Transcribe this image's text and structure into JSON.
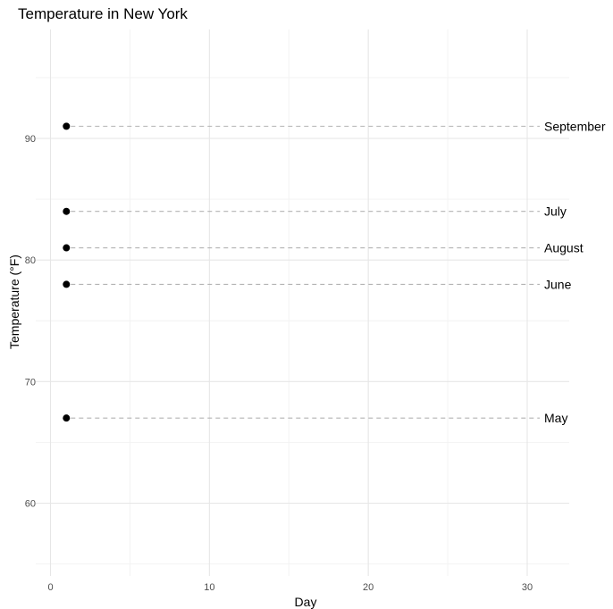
{
  "chart_data": {
    "type": "scatter",
    "title": "Temperature in New York",
    "xlabel": "Day",
    "ylabel": "Temperature (°F)",
    "xlim": [
      0,
      32.5
    ],
    "ylim": [
      55,
      97
    ],
    "x_ticks": [
      0,
      10,
      20,
      30
    ],
    "x_tick_labels": [
      "0",
      "10",
      "20",
      "30"
    ],
    "y_ticks": [
      60,
      70,
      80,
      90
    ],
    "y_tick_labels": [
      "60",
      "70",
      "80",
      "90"
    ],
    "grid": true,
    "legend": "none",
    "series": [
      {
        "points": [
          {
            "x": 1,
            "y": 91,
            "label": "September"
          },
          {
            "x": 1,
            "y": 84,
            "label": "July"
          },
          {
            "x": 1,
            "y": 81,
            "label": "August"
          },
          {
            "x": 1,
            "y": 78,
            "label": "June"
          },
          {
            "x": 1,
            "y": 67,
            "label": "May"
          }
        ],
        "color": "#000000"
      }
    ],
    "guide_color": "#b3b3b3",
    "grid_color": "#e6e6e6"
  }
}
